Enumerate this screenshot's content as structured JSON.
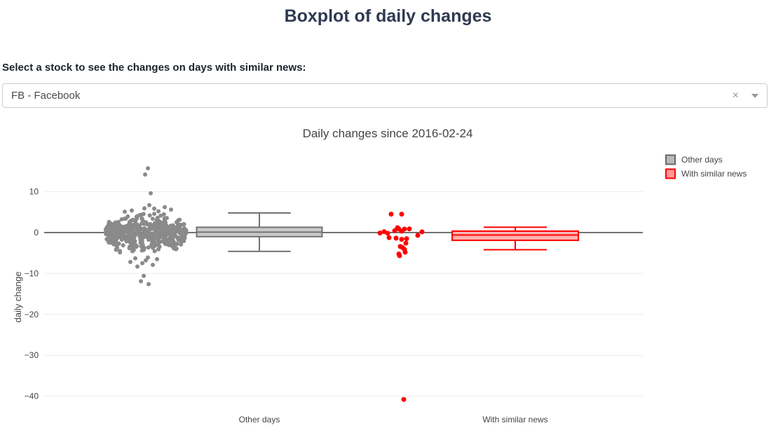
{
  "page": {
    "title": "Boxplot of daily changes"
  },
  "selector": {
    "label": "Select a stock to see the changes on days with similar news:",
    "value": "FB - Facebook",
    "clear_icon": "×"
  },
  "chart_data": {
    "type": "box",
    "title": "Daily changes since 2016-02-24",
    "ylabel": "daily change",
    "xlabel": "",
    "categories": [
      "Other days",
      "With similar news"
    ],
    "yticks": [
      10,
      0,
      -10,
      -20,
      -30,
      -40
    ],
    "ylim": [
      -43.5,
      19
    ],
    "grid": true,
    "legend_position": "top-right",
    "colors": {
      "zero_line": "#444444",
      "grid_line": "#ececec",
      "axis_text": "#444444",
      "title_text": "#444444"
    },
    "legend": [
      {
        "label": "Other days",
        "line_color": "#666666",
        "fill_color": "#b9b9b9"
      },
      {
        "label": "With similar news",
        "line_color": "#ff0000",
        "fill_color": "#ff9999"
      }
    ],
    "series": [
      {
        "name": "Other days",
        "line_color": "#737373",
        "fill_color": "#c9c9c9",
        "point_color": "#8a8a8a",
        "box": {
          "whisker_low": -4.6,
          "q1": -1.0,
          "median": 0.1,
          "q3": 1.3,
          "whisker_high": 4.8
        },
        "points_cloud": {
          "count": 500,
          "mean": -0.1,
          "sd": 1.9,
          "clamp_low": -5.4,
          "clamp_high": 5.0,
          "seed": 20160224
        },
        "outlier_points": [
          [
            3,
            15.7
          ],
          [
            -1,
            14.2
          ],
          [
            7,
            9.6
          ],
          [
            -3,
            -10.6
          ],
          [
            -7,
            -11.9
          ],
          [
            4,
            -12.6
          ],
          [
            -15,
            -6.3
          ],
          [
            0,
            -6.8
          ],
          [
            -22,
            -7.2
          ],
          [
            -5,
            -7.5
          ],
          [
            10,
            -7.9
          ],
          [
            -12,
            -8.3
          ],
          [
            3,
            -6.1
          ],
          [
            16,
            -6.5
          ],
          [
            5,
            6.7
          ],
          [
            27,
            6.2
          ],
          [
            -2,
            5.9
          ],
          [
            -20,
            5.4
          ],
          [
            18,
            5.2
          ],
          [
            36,
            5.6
          ],
          [
            -30,
            5.1
          ],
          [
            12,
            5.85
          ]
        ]
      },
      {
        "name": "With similar news",
        "line_color": "#ff0000",
        "fill_color": "#ffb1b1",
        "point_color": "#ff0000",
        "box": {
          "whisker_low": -4.2,
          "q1": -1.9,
          "median": -0.6,
          "q3": 0.35,
          "whisker_high": 1.3
        },
        "points": [
          [
            -12,
            4.5
          ],
          [
            3,
            4.5
          ],
          [
            -3,
            1.2
          ],
          [
            14,
            0.9
          ],
          [
            -1,
            0.85
          ],
          [
            7,
            0.85
          ],
          [
            -7,
            0.46
          ],
          [
            3,
            0.34
          ],
          [
            -22,
            0.22
          ],
          [
            32,
            0.17
          ],
          [
            -28,
            -0.12
          ],
          [
            -17,
            -0.17
          ],
          [
            26,
            -0.68
          ],
          [
            -15,
            -1.25
          ],
          [
            -5,
            -1.37
          ],
          [
            10,
            -1.49
          ],
          [
            3,
            -1.66
          ],
          [
            9,
            -2.6
          ],
          [
            1,
            -3.4
          ],
          [
            4,
            -3.64
          ],
          [
            7,
            -4.1
          ],
          [
            8,
            -4.8
          ],
          [
            -1,
            -5.25
          ],
          [
            0,
            -5.65
          ],
          [
            6,
            -40.8
          ]
        ]
      }
    ]
  }
}
